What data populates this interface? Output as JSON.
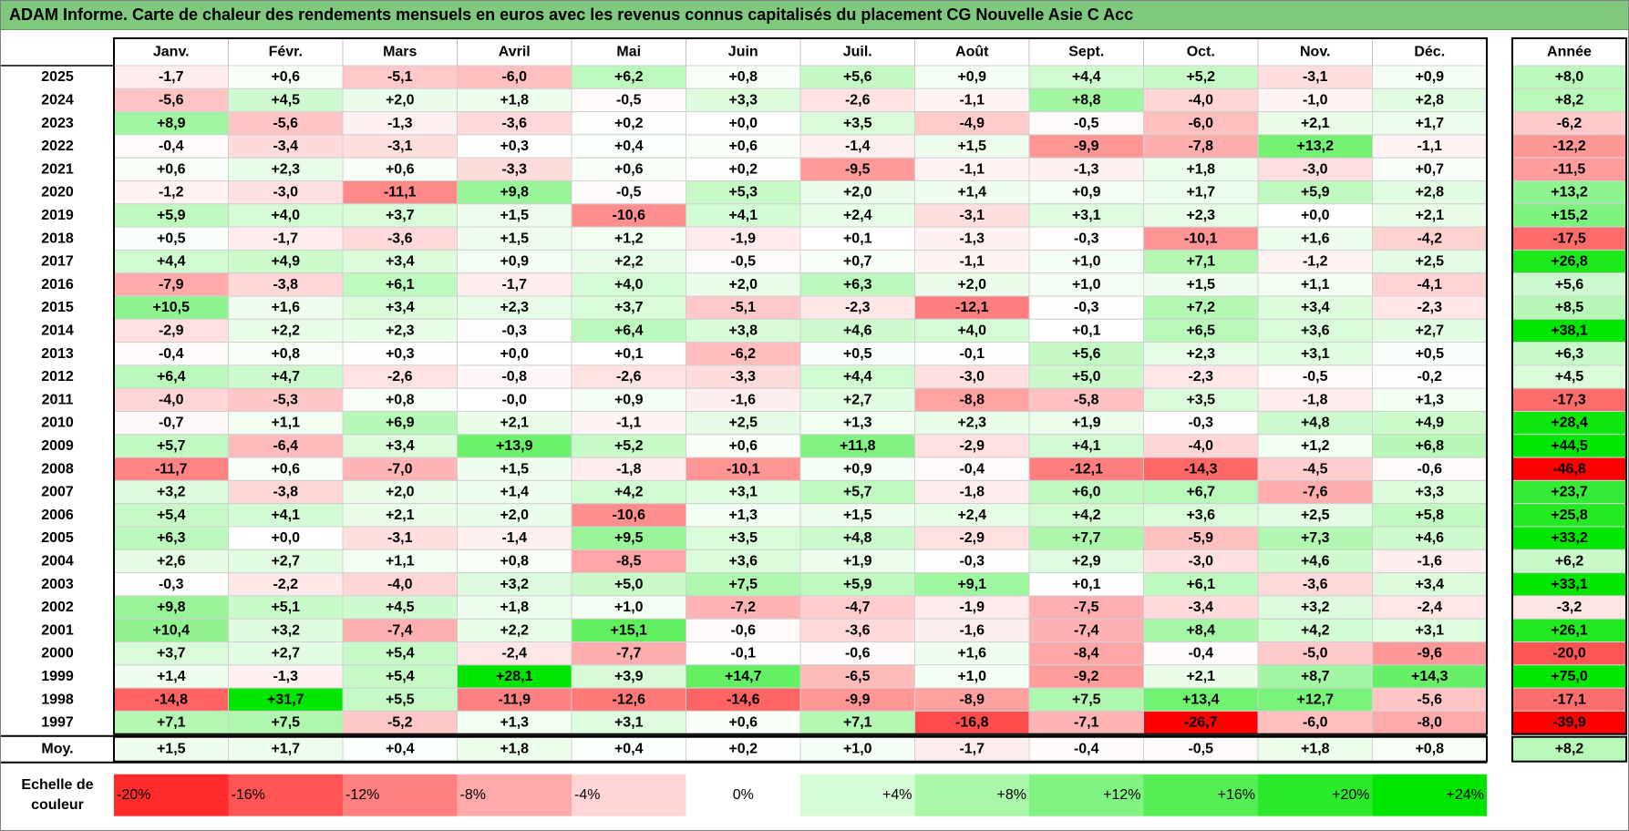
{
  "title": "ADAM Informe. Carte de chaleur des rendements mensuels en euros avec les revenus connus capitalisés du placement CG Nouvelle Asie C Acc",
  "chart_data": {
    "type": "heatmap",
    "months": [
      "Janv.",
      "Févr.",
      "Mars",
      "Avril",
      "Mai",
      "Juin",
      "Juil.",
      "Août",
      "Sept.",
      "Oct.",
      "Nov.",
      "Déc."
    ],
    "annual_header": "Année",
    "years": [
      "2025",
      "2024",
      "2023",
      "2022",
      "2021",
      "2020",
      "2019",
      "2018",
      "2017",
      "2016",
      "2015",
      "2014",
      "2013",
      "2012",
      "2011",
      "2010",
      "2009",
      "2008",
      "2007",
      "2006",
      "2005",
      "2004",
      "2003",
      "2002",
      "2001",
      "2000",
      "1999",
      "1998",
      "1997"
    ],
    "values": [
      [
        "-1,7",
        "+0,6",
        "-5,1",
        "-6,0",
        "+6,2",
        "+0,8",
        "+5,6",
        "+0,9",
        "+4,4",
        "+5,2",
        "-3,1",
        "+0,9"
      ],
      [
        "-5,6",
        "+4,5",
        "+2,0",
        "+1,8",
        "-0,5",
        "+3,3",
        "-2,6",
        "-1,1",
        "+8,8",
        "-4,0",
        "-1,0",
        "+2,8"
      ],
      [
        "+8,9",
        "-5,6",
        "-1,3",
        "-3,6",
        "+0,2",
        "+0,0",
        "+3,5",
        "-4,9",
        "-0,5",
        "-6,0",
        "+2,1",
        "+1,7"
      ],
      [
        "-0,4",
        "-3,4",
        "-3,1",
        "+0,3",
        "+0,4",
        "+0,6",
        "-1,4",
        "+1,5",
        "-9,9",
        "-7,8",
        "+13,2",
        "-1,1"
      ],
      [
        "+0,6",
        "+2,3",
        "+0,6",
        "-3,3",
        "+0,6",
        "+0,2",
        "-9,5",
        "-1,1",
        "-1,3",
        "+1,8",
        "-3,0",
        "+0,7"
      ],
      [
        "-1,2",
        "-3,0",
        "-11,1",
        "+9,8",
        "-0,5",
        "+5,3",
        "+2,0",
        "+1,4",
        "+0,9",
        "+1,7",
        "+5,9",
        "+2,8"
      ],
      [
        "+5,9",
        "+4,0",
        "+3,7",
        "+1,5",
        "-10,6",
        "+4,1",
        "+2,4",
        "-3,1",
        "+3,1",
        "+2,3",
        "+0,0",
        "+2,1"
      ],
      [
        "+0,5",
        "-1,7",
        "-3,6",
        "+1,5",
        "+1,2",
        "-1,9",
        "+0,1",
        "-1,3",
        "-0,3",
        "-10,1",
        "+1,6",
        "-4,2"
      ],
      [
        "+4,4",
        "+4,9",
        "+3,4",
        "+0,9",
        "+2,2",
        "-0,5",
        "+0,7",
        "-1,1",
        "+1,0",
        "+7,1",
        "-1,2",
        "+2,5"
      ],
      [
        "-7,9",
        "-3,8",
        "+6,1",
        "-1,7",
        "+4,0",
        "+2,0",
        "+6,3",
        "+2,0",
        "+1,0",
        "+1,5",
        "+1,1",
        "-4,1"
      ],
      [
        "+10,5",
        "+1,6",
        "+3,4",
        "+2,3",
        "+3,7",
        "-5,1",
        "-2,3",
        "-12,1",
        "-0,3",
        "+7,2",
        "+3,4",
        "-2,3"
      ],
      [
        "-2,9",
        "+2,2",
        "+2,3",
        "-0,3",
        "+6,4",
        "+3,8",
        "+4,6",
        "+4,0",
        "+0,1",
        "+6,5",
        "+3,6",
        "+2,7"
      ],
      [
        "-0,4",
        "+0,8",
        "+0,3",
        "+0,0",
        "+0,1",
        "-6,2",
        "+0,5",
        "-0,1",
        "+5,6",
        "+2,3",
        "+3,1",
        "+0,5"
      ],
      [
        "+6,4",
        "+4,7",
        "-2,6",
        "-0,8",
        "-2,6",
        "-3,3",
        "+4,4",
        "-3,0",
        "+5,0",
        "-2,3",
        "-0,5",
        "-0,2"
      ],
      [
        "-4,0",
        "-5,3",
        "+0,8",
        "-0,0",
        "+0,9",
        "-1,6",
        "+2,7",
        "-8,8",
        "-5,8",
        "+3,5",
        "-1,8",
        "+1,3"
      ],
      [
        "-0,7",
        "+1,1",
        "+6,9",
        "+2,1",
        "-1,1",
        "+2,5",
        "+1,3",
        "+2,3",
        "+1,9",
        "-0,3",
        "+4,8",
        "+4,9"
      ],
      [
        "+5,7",
        "-6,4",
        "+3,4",
        "+13,9",
        "+5,2",
        "+0,6",
        "+11,8",
        "-2,9",
        "+4,1",
        "-4,0",
        "+1,2",
        "+6,8"
      ],
      [
        "-11,7",
        "+0,6",
        "-7,0",
        "+1,5",
        "-1,8",
        "-10,1",
        "+0,9",
        "-0,4",
        "-12,1",
        "-14,3",
        "-4,5",
        "-0,6"
      ],
      [
        "+3,2",
        "-3,8",
        "+2,0",
        "+1,4",
        "+4,2",
        "+3,1",
        "+5,7",
        "-1,8",
        "+6,0",
        "+6,7",
        "-7,6",
        "+3,3"
      ],
      [
        "+5,4",
        "+4,1",
        "+2,1",
        "+2,0",
        "-10,6",
        "+1,3",
        "+1,5",
        "+2,4",
        "+4,2",
        "+3,6",
        "+2,5",
        "+5,8"
      ],
      [
        "+6,3",
        "+0,0",
        "-3,1",
        "-1,4",
        "+9,5",
        "+3,5",
        "+4,8",
        "-2,9",
        "+7,7",
        "-5,9",
        "+7,3",
        "+4,6"
      ],
      [
        "+2,6",
        "+2,7",
        "+1,1",
        "+0,8",
        "-8,5",
        "+3,6",
        "+1,9",
        "-0,3",
        "+2,9",
        "-3,0",
        "+4,6",
        "-1,6"
      ],
      [
        "-0,3",
        "-2,2",
        "-4,0",
        "+3,2",
        "+5,0",
        "+7,5",
        "+5,9",
        "+9,1",
        "+0,1",
        "+6,1",
        "-3,6",
        "+3,4"
      ],
      [
        "+9,8",
        "+5,1",
        "+4,5",
        "+1,8",
        "+1,0",
        "-7,2",
        "-4,7",
        "-1,9",
        "-7,5",
        "-3,4",
        "+3,2",
        "-2,4"
      ],
      [
        "+10,4",
        "+3,2",
        "-7,4",
        "+2,2",
        "+15,1",
        "-0,6",
        "-3,6",
        "-1,6",
        "-7,4",
        "+8,4",
        "+4,2",
        "+3,1"
      ],
      [
        "+3,7",
        "+2,7",
        "+5,4",
        "-2,4",
        "-7,7",
        "-0,1",
        "-0,6",
        "+1,6",
        "-8,4",
        "-0,4",
        "-5,0",
        "-9,6"
      ],
      [
        "+1,4",
        "-1,3",
        "+5,4",
        "+28,1",
        "+3,9",
        "+14,7",
        "-6,5",
        "+1,0",
        "-9,2",
        "+2,1",
        "+8,7",
        "+14,3"
      ],
      [
        "-14,8",
        "+31,7",
        "+5,5",
        "-11,9",
        "-12,6",
        "-14,6",
        "-9,9",
        "-8,9",
        "+7,5",
        "+13,4",
        "+12,7",
        "-5,6"
      ],
      [
        "+7,1",
        "+7,5",
        "-5,2",
        "+1,3",
        "+3,1",
        "+0,6",
        "+7,1",
        "-16,8",
        "-7,1",
        "-26,7",
        "-6,0",
        "-8,0"
      ]
    ],
    "annual": [
      "+8,0",
      "+8,2",
      "-6,2",
      "-12,2",
      "-11,5",
      "+13,2",
      "+15,2",
      "-17,5",
      "+26,8",
      "+5,6",
      "+8,5",
      "+38,1",
      "+6,3",
      "+4,5",
      "-17,3",
      "+28,4",
      "+44,5",
      "-46,8",
      "+23,7",
      "+25,8",
      "+33,2",
      "+6,2",
      "+33,1",
      "-3,2",
      "+26,1",
      "-20,0",
      "+75,0",
      "-17,1",
      "-39,9"
    ],
    "average_label": "Moy.",
    "averages": [
      "+1,5",
      "+1,7",
      "+0,4",
      "+1,8",
      "+0,4",
      "+0,2",
      "+1,0",
      "-1,7",
      "-0,4",
      "-0,5",
      "+1,8",
      "+0,8"
    ],
    "average_annual": "+8,2",
    "scale_label_lines": [
      "Echelle de",
      "couleur"
    ],
    "scale": [
      {
        "label": "-20%",
        "value": -20
      },
      {
        "label": "-16%",
        "value": -16
      },
      {
        "label": "-12%",
        "value": -12
      },
      {
        "label": "-8%",
        "value": -8
      },
      {
        "label": "-4%",
        "value": -4
      },
      {
        "label": "0%",
        "value": 0
      },
      {
        "label": "+4%",
        "value": 4
      },
      {
        "label": "+8%",
        "value": 8
      },
      {
        "label": "+12%",
        "value": 12
      },
      {
        "label": "+16%",
        "value": 16
      },
      {
        "label": "+20%",
        "value": 20
      },
      {
        "label": "+24%",
        "value": 24
      }
    ],
    "colors": {
      "negative_max": "#ff0000",
      "neutral": "#ffffff",
      "positive_max": "#00e600",
      "title_bg": "#7fc97f"
    }
  }
}
